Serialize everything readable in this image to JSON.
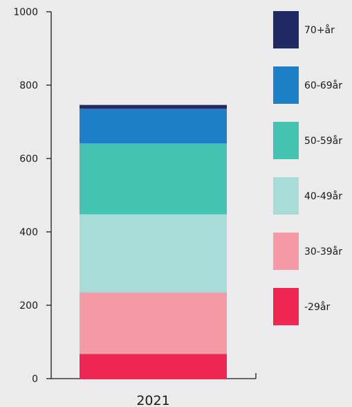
{
  "chart_data": {
    "type": "bar",
    "stacked": true,
    "categories": [
      "2021"
    ],
    "ylim": [
      0,
      1000
    ],
    "yticks": [
      0,
      200,
      400,
      600,
      800,
      1000
    ],
    "ytick_labels": [
      "0",
      "200",
      "400",
      "600",
      "800",
      "1000"
    ],
    "grid": false,
    "legend_position": "right",
    "series": [
      {
        "name": "-29år",
        "values": [
          67
        ],
        "color": "#ef2754"
      },
      {
        "name": "30-39år",
        "values": [
          168
        ],
        "color": "#f49ba7"
      },
      {
        "name": "40-49år",
        "values": [
          213
        ],
        "color": "#a8dcd8"
      },
      {
        "name": "50-59år",
        "values": [
          193
        ],
        "color": "#45c2b2"
      },
      {
        "name": "60-69år",
        "values": [
          95
        ],
        "color": "#1e7fc6"
      },
      {
        "name": "70+år",
        "values": [
          10
        ],
        "color": "#1f2b62"
      }
    ]
  }
}
